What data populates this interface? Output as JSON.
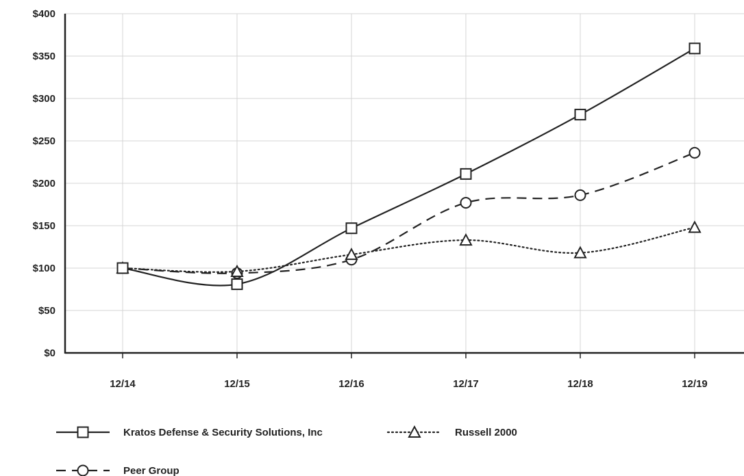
{
  "chart_data": {
    "type": "line",
    "title": "",
    "xlabel": "",
    "ylabel": "",
    "categories": [
      "12/14",
      "12/15",
      "12/16",
      "12/17",
      "12/18",
      "12/19"
    ],
    "ylim": [
      0,
      400
    ],
    "yticks": [
      0,
      50,
      100,
      150,
      200,
      250,
      300,
      350,
      400
    ],
    "ytick_labels": [
      "$0",
      "$50",
      "$100",
      "$150",
      "$200",
      "$250",
      "$300",
      "$350",
      "$400"
    ],
    "grid": true,
    "legend_position": "bottom-left",
    "series": [
      {
        "name": "Kratos Defense & Security Solutions, Inc",
        "values": [
          100,
          81,
          147,
          211,
          281,
          359
        ],
        "marker": "square",
        "line_style": "solid",
        "color": "#222222"
      },
      {
        "name": "Russell 2000",
        "values": [
          100,
          96,
          116,
          133,
          118,
          148
        ],
        "marker": "triangle",
        "line_style": "dotted",
        "color": "#222222"
      },
      {
        "name": "Peer Group",
        "values": [
          100,
          94,
          110,
          177,
          186,
          236
        ],
        "marker": "circle",
        "line_style": "dashed",
        "color": "#222222"
      }
    ]
  }
}
